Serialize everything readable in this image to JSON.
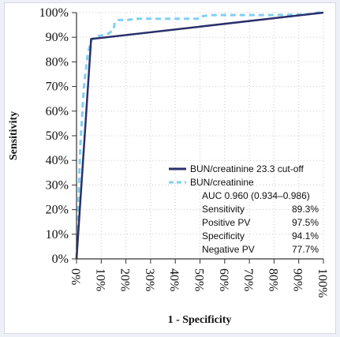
{
  "chart_data": {
    "type": "line",
    "title": "",
    "xlabel": "1 - Specificity",
    "ylabel": "Sensitivity",
    "xlim": [
      0,
      100
    ],
    "ylim": [
      0,
      100
    ],
    "x_ticks": [
      "0%",
      "10%",
      "20%",
      "30%",
      "40%",
      "50%",
      "60%",
      "70%",
      "80%",
      "90%",
      "100%"
    ],
    "y_ticks": [
      "0%",
      "10%",
      "20%",
      "30%",
      "40%",
      "50%",
      "60%",
      "70%",
      "80%",
      "90%",
      "100%"
    ],
    "grid": true,
    "legend_position": "bottom-right",
    "series": [
      {
        "name": "BUN/creatinine 23.3 cut-off",
        "style": "solid",
        "color": "#2b2f6b",
        "x": [
          0,
          5.9,
          100
        ],
        "y": [
          0,
          89.3,
          100
        ]
      },
      {
        "name": "BUN/creatinine",
        "style": "dashed",
        "color": "#7fd0f2",
        "x": [
          0,
          1.5,
          3,
          4.5,
          6,
          9,
          13,
          15,
          15.5,
          17,
          20,
          25,
          30,
          35,
          40,
          45,
          49,
          50,
          55,
          60,
          70,
          80,
          90,
          95,
          97,
          100
        ],
        "y": [
          0,
          45,
          70,
          83,
          89,
          90.5,
          91.5,
          93,
          96,
          97,
          97,
          97.5,
          97.5,
          97.5,
          97.5,
          97.5,
          97.5,
          98.5,
          99,
          99,
          99,
          99,
          99.2,
          99.5,
          100,
          100
        ]
      }
    ],
    "stats": {
      "auc": "AUC 0.960 (0.934–0.986)",
      "rows": [
        {
          "label": "Sensitivity",
          "value": "89.3%"
        },
        {
          "label": "Positive PV",
          "value": "97.5%"
        },
        {
          "label": "Specificity",
          "value": "94.1%"
        },
        {
          "label": "Negative PV",
          "value": "77.7%"
        }
      ]
    }
  }
}
